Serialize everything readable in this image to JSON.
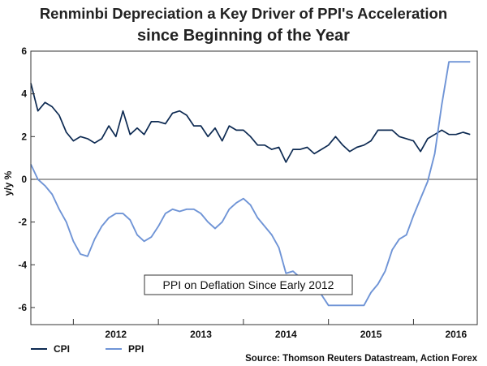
{
  "chart_data": {
    "type": "line",
    "title": "Renminbi Depreciation a Key Driver of PPI's Acceleration",
    "subtitle": "since Beginning of the Year",
    "ylabel": "y/y %",
    "xlabel": "",
    "ylim": [
      -6.8,
      6
    ],
    "yticks": [
      6,
      4,
      2,
      0,
      -2,
      -4,
      -6
    ],
    "xlim": [
      2011.5,
      2016.75
    ],
    "xtick_labels": [
      "2012",
      "2013",
      "2014",
      "2015",
      "2016"
    ],
    "xtick_positions": [
      2012.5,
      2013.5,
      2014.5,
      2015.5,
      2016.5
    ],
    "year_boundaries": [
      2012,
      2013,
      2014,
      2015,
      2016
    ],
    "grid": false,
    "annotation": "PPI on Deflation Since Early 2012",
    "source": "Source: Thomson Reuters Datastream, Action Forex",
    "colors": {
      "cpi": "#0d2a52",
      "ppi": "#6f94d6",
      "frame": "#333333",
      "zero_line": "#444444"
    },
    "series": [
      {
        "name": "CPI",
        "x": [
          2011.5,
          2011.583,
          2011.667,
          2011.75,
          2011.833,
          2011.917,
          2012,
          2012.083,
          2012.167,
          2012.25,
          2012.333,
          2012.417,
          2012.5,
          2012.583,
          2012.667,
          2012.75,
          2012.833,
          2012.917,
          2013,
          2013.083,
          2013.167,
          2013.25,
          2013.333,
          2013.417,
          2013.5,
          2013.583,
          2013.667,
          2013.75,
          2013.833,
          2013.917,
          2014,
          2014.083,
          2014.167,
          2014.25,
          2014.333,
          2014.417,
          2014.5,
          2014.583,
          2014.667,
          2014.75,
          2014.833,
          2014.917,
          2015,
          2015.083,
          2015.167,
          2015.25,
          2015.333,
          2015.417,
          2015.5,
          2015.583,
          2015.667,
          2015.75,
          2015.833,
          2015.917,
          2016,
          2016.083,
          2016.167,
          2016.25,
          2016.333,
          2016.417,
          2016.5,
          2016.583,
          2016.667
        ],
        "values": [
          4.5,
          3.2,
          3.6,
          3.4,
          3.0,
          2.2,
          1.8,
          2.0,
          1.9,
          1.7,
          1.9,
          2.5,
          2.0,
          3.2,
          2.1,
          2.4,
          2.1,
          2.7,
          2.7,
          2.6,
          3.1,
          3.2,
          3.0,
          2.5,
          2.5,
          2.0,
          2.4,
          1.8,
          2.5,
          2.3,
          2.3,
          2.0,
          1.6,
          1.6,
          1.4,
          1.5,
          0.8,
          1.4,
          1.4,
          1.5,
          1.2,
          1.4,
          1.6,
          2.0,
          1.6,
          1.3,
          1.5,
          1.6,
          1.8,
          2.3,
          2.3,
          2.3,
          2.0,
          1.9,
          1.8,
          1.3,
          1.9,
          2.1,
          2.3,
          2.1,
          2.1,
          2.2,
          2.1
        ],
        "color": "#0d2a52"
      },
      {
        "name": "PPI",
        "x": [
          2011.5,
          2011.583,
          2011.667,
          2011.75,
          2011.833,
          2011.917,
          2012,
          2012.083,
          2012.167,
          2012.25,
          2012.333,
          2012.417,
          2012.5,
          2012.583,
          2012.667,
          2012.75,
          2012.833,
          2012.917,
          2013,
          2013.083,
          2013.167,
          2013.25,
          2013.333,
          2013.417,
          2013.5,
          2013.583,
          2013.667,
          2013.75,
          2013.833,
          2013.917,
          2014,
          2014.083,
          2014.167,
          2014.25,
          2014.333,
          2014.417,
          2014.5,
          2014.583,
          2014.667,
          2014.75,
          2014.833,
          2014.917,
          2015,
          2015.083,
          2015.167,
          2015.25,
          2015.333,
          2015.417,
          2015.5,
          2015.583,
          2015.667,
          2015.75,
          2015.833,
          2015.917,
          2016,
          2016.083,
          2016.167,
          2016.25,
          2016.333,
          2016.417,
          2016.5,
          2016.583,
          2016.667
        ],
        "values": [
          0.7,
          0.0,
          -0.3,
          -0.7,
          -1.4,
          -2.0,
          -2.9,
          -3.5,
          -3.6,
          -2.8,
          -2.2,
          -1.8,
          -1.6,
          -1.6,
          -1.9,
          -2.6,
          -2.9,
          -2.7,
          -2.2,
          -1.6,
          -1.4,
          -1.5,
          -1.4,
          -1.4,
          -1.6,
          -2.0,
          -2.3,
          -2.0,
          -1.4,
          -1.1,
          -0.9,
          -1.2,
          -1.8,
          -2.2,
          -2.6,
          -3.2,
          -4.4,
          -4.3,
          -4.6,
          -4.8,
          -5.1,
          -5.4,
          -5.9,
          -5.9,
          -5.9,
          -5.9,
          -5.9,
          -5.9,
          -5.3,
          -4.9,
          -4.3,
          -3.3,
          -2.8,
          -2.6,
          -1.7,
          -0.9,
          -0.1,
          1.2,
          3.5,
          5.5,
          5.5,
          5.5,
          5.5
        ],
        "color": "#6f94d6"
      }
    ]
  }
}
